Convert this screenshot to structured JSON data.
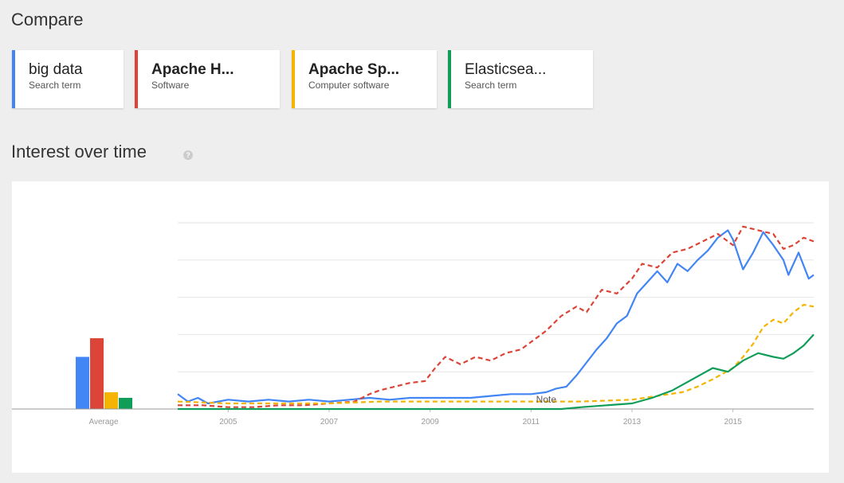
{
  "header": {
    "title": "Compare"
  },
  "terms": [
    {
      "name": "big data",
      "type": "Search term",
      "color": "#4285f4",
      "bold": false
    },
    {
      "name": "Apache H...",
      "type": "Software",
      "color": "#db4437",
      "bold": true
    },
    {
      "name": "Apache Sp...",
      "type": "Computer software",
      "color": "#f4b400",
      "bold": true
    },
    {
      "name": "Elasticsea...",
      "type": "Search term",
      "color": "#0f9d58",
      "bold": false
    }
  ],
  "section": {
    "title": "Interest over time",
    "help_icon": "help-icon",
    "help_glyph": "?"
  },
  "chart_data": {
    "type": "line",
    "xlim": [
      2004.0,
      2016.6
    ],
    "ylim": [
      0,
      100
    ],
    "grid": true,
    "x_ticks": [
      "2005",
      "2007",
      "2009",
      "2011",
      "2013",
      "2015"
    ],
    "x_tick_values": [
      2005,
      2007,
      2009,
      2011,
      2013,
      2015
    ],
    "annotation": {
      "text": "Note",
      "x": 2011.1
    },
    "average": {
      "label": "Average",
      "values": [
        {
          "color": "#4285f4",
          "value": 28
        },
        {
          "color": "#db4437",
          "value": 38
        },
        {
          "color": "#f4b400",
          "value": 9
        },
        {
          "color": "#0f9d58",
          "value": 6
        }
      ]
    },
    "series": [
      {
        "color": "#4285f4",
        "dashed": false,
        "points": [
          [
            2004.0,
            8
          ],
          [
            2004.2,
            4
          ],
          [
            2004.4,
            6
          ],
          [
            2004.6,
            3
          ],
          [
            2005.0,
            5
          ],
          [
            2005.4,
            4
          ],
          [
            2005.8,
            5
          ],
          [
            2006.2,
            4
          ],
          [
            2006.6,
            5
          ],
          [
            2007.0,
            4
          ],
          [
            2007.4,
            5
          ],
          [
            2007.8,
            6
          ],
          [
            2008.2,
            5
          ],
          [
            2008.6,
            6
          ],
          [
            2009.0,
            6
          ],
          [
            2009.4,
            6
          ],
          [
            2009.8,
            6
          ],
          [
            2010.2,
            7
          ],
          [
            2010.6,
            8
          ],
          [
            2011.0,
            8
          ],
          [
            2011.3,
            9
          ],
          [
            2011.5,
            11
          ],
          [
            2011.7,
            12
          ],
          [
            2011.9,
            18
          ],
          [
            2012.1,
            25
          ],
          [
            2012.3,
            32
          ],
          [
            2012.5,
            38
          ],
          [
            2012.7,
            46
          ],
          [
            2012.9,
            50
          ],
          [
            2013.1,
            62
          ],
          [
            2013.3,
            68
          ],
          [
            2013.5,
            74
          ],
          [
            2013.7,
            68
          ],
          [
            2013.9,
            78
          ],
          [
            2014.1,
            74
          ],
          [
            2014.3,
            80
          ],
          [
            2014.5,
            85
          ],
          [
            2014.7,
            92
          ],
          [
            2014.9,
            96
          ],
          [
            2015.0,
            91
          ],
          [
            2015.2,
            75
          ],
          [
            2015.4,
            84
          ],
          [
            2015.6,
            95
          ],
          [
            2015.8,
            88
          ],
          [
            2016.0,
            80
          ],
          [
            2016.1,
            72
          ],
          [
            2016.3,
            84
          ],
          [
            2016.5,
            70
          ],
          [
            2016.6,
            72
          ]
        ]
      },
      {
        "color": "#db4437",
        "dashed": true,
        "points": [
          [
            2004.0,
            2
          ],
          [
            2004.5,
            2
          ],
          [
            2005.0,
            1
          ],
          [
            2005.5,
            1
          ],
          [
            2006.0,
            2
          ],
          [
            2006.5,
            2
          ],
          [
            2007.0,
            3
          ],
          [
            2007.5,
            4
          ],
          [
            2007.8,
            8
          ],
          [
            2008.0,
            10
          ],
          [
            2008.3,
            12
          ],
          [
            2008.6,
            14
          ],
          [
            2008.9,
            15
          ],
          [
            2009.1,
            22
          ],
          [
            2009.3,
            28
          ],
          [
            2009.6,
            24
          ],
          [
            2009.9,
            28
          ],
          [
            2010.2,
            26
          ],
          [
            2010.5,
            30
          ],
          [
            2010.8,
            32
          ],
          [
            2011.0,
            36
          ],
          [
            2011.3,
            42
          ],
          [
            2011.6,
            50
          ],
          [
            2011.9,
            55
          ],
          [
            2012.1,
            52
          ],
          [
            2012.4,
            64
          ],
          [
            2012.7,
            62
          ],
          [
            2013.0,
            70
          ],
          [
            2013.2,
            78
          ],
          [
            2013.5,
            76
          ],
          [
            2013.8,
            84
          ],
          [
            2014.1,
            86
          ],
          [
            2014.4,
            90
          ],
          [
            2014.7,
            94
          ],
          [
            2015.0,
            88
          ],
          [
            2015.2,
            98
          ],
          [
            2015.5,
            96
          ],
          [
            2015.8,
            94
          ],
          [
            2016.0,
            86
          ],
          [
            2016.2,
            88
          ],
          [
            2016.4,
            92
          ],
          [
            2016.6,
            90
          ]
        ]
      },
      {
        "color": "#f4b400",
        "dashed": true,
        "points": [
          [
            2004.0,
            4
          ],
          [
            2005.0,
            3
          ],
          [
            2006.0,
            3
          ],
          [
            2007.0,
            3
          ],
          [
            2008.0,
            4
          ],
          [
            2009.0,
            4
          ],
          [
            2010.0,
            4
          ],
          [
            2011.0,
            4
          ],
          [
            2012.0,
            4
          ],
          [
            2013.0,
            5
          ],
          [
            2013.5,
            7
          ],
          [
            2014.0,
            9
          ],
          [
            2014.3,
            12
          ],
          [
            2014.6,
            16
          ],
          [
            2015.0,
            22
          ],
          [
            2015.2,
            28
          ],
          [
            2015.4,
            35
          ],
          [
            2015.6,
            44
          ],
          [
            2015.8,
            48
          ],
          [
            2016.0,
            46
          ],
          [
            2016.2,
            52
          ],
          [
            2016.4,
            56
          ],
          [
            2016.6,
            55
          ]
        ]
      },
      {
        "color": "#0f9d58",
        "dashed": false,
        "points": [
          [
            2004.0,
            0
          ],
          [
            2011.6,
            0
          ],
          [
            2012.0,
            1
          ],
          [
            2012.5,
            2
          ],
          [
            2013.0,
            3
          ],
          [
            2013.4,
            6
          ],
          [
            2013.8,
            10
          ],
          [
            2014.2,
            16
          ],
          [
            2014.6,
            22
          ],
          [
            2014.9,
            20
          ],
          [
            2015.2,
            26
          ],
          [
            2015.5,
            30
          ],
          [
            2015.8,
            28
          ],
          [
            2016.0,
            27
          ],
          [
            2016.2,
            30
          ],
          [
            2016.4,
            34
          ],
          [
            2016.6,
            40
          ]
        ]
      }
    ]
  }
}
